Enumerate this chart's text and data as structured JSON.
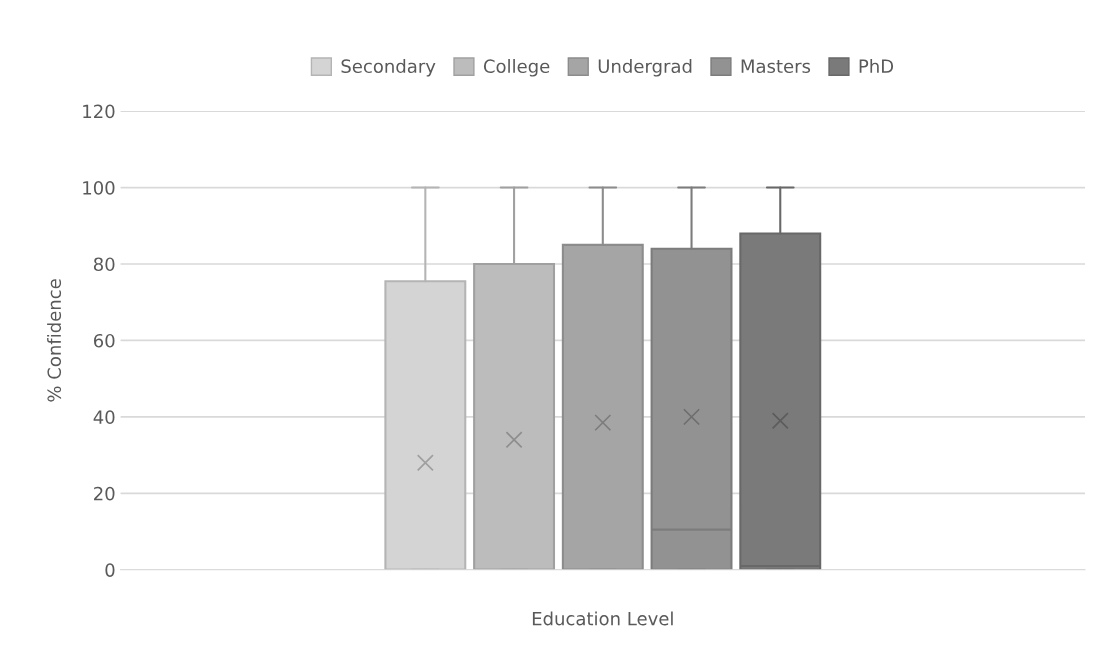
{
  "chart_data": {
    "type": "box",
    "xlabel": "Education Level",
    "ylabel": "% Confidence",
    "categories": [
      null
    ],
    "ylim": [
      0,
      120
    ],
    "yticks": [
      0,
      20,
      40,
      60,
      80,
      100,
      120
    ],
    "grid": "y",
    "legend": "top",
    "tick_labels": "y",
    "marker": "cross",
    "series": [
      {
        "name": "Secondary",
        "color": "#d4d4d4",
        "boxes": [
          {
            "low": 0,
            "q1": 0,
            "median": 0,
            "q3": 75.5,
            "high": 100,
            "mean": 28
          }
        ]
      },
      {
        "name": "College",
        "color": "#bcbcbc",
        "boxes": [
          {
            "low": 0,
            "q1": 0,
            "median": 0,
            "q3": 80,
            "high": 100,
            "mean": 34
          }
        ]
      },
      {
        "name": "Undergrad",
        "color": "#a5a5a5",
        "boxes": [
          {
            "low": 0,
            "q1": 0,
            "median": 0,
            "q3": 85,
            "high": 100,
            "mean": 38.5
          }
        ]
      },
      {
        "name": "Masters",
        "color": "#929292",
        "boxes": [
          {
            "low": 0,
            "q1": 0,
            "median": 10.5,
            "q3": 84,
            "high": 100,
            "mean": 40
          }
        ]
      },
      {
        "name": "PhD",
        "color": "#7a7a7a",
        "boxes": [
          {
            "low": 0,
            "q1": 0,
            "median": 1,
            "q3": 88,
            "high": 100,
            "mean": 39
          }
        ]
      }
    ]
  }
}
